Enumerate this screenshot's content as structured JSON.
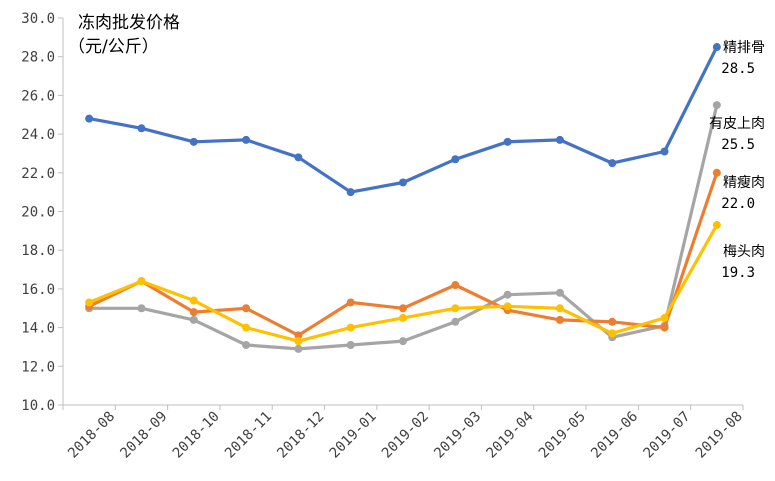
{
  "chart_data": {
    "type": "line",
    "title": "冻肉批发价格",
    "subtitle": "（元/公斤）",
    "xlabel": "",
    "ylabel": "",
    "categories": [
      "2018-08",
      "2018-09",
      "2018-10",
      "2018-11",
      "2018-12",
      "2019-01",
      "2019-02",
      "2019-03",
      "2019-04",
      "2019-05",
      "2019-06",
      "2019-07",
      "2019-08"
    ],
    "y_ticks": [
      "10.0",
      "12.0",
      "14.0",
      "16.0",
      "18.0",
      "20.0",
      "22.0",
      "24.0",
      "26.0",
      "28.0",
      "30.0"
    ],
    "ylim": [
      10,
      30
    ],
    "grid": false,
    "legend": "none",
    "series": [
      {
        "name": "精排骨",
        "color": "#4472C4",
        "values": [
          24.8,
          24.3,
          23.6,
          23.7,
          22.8,
          21.0,
          21.5,
          22.7,
          23.6,
          23.7,
          22.5,
          23.1,
          28.5
        ],
        "label_value": "28.5"
      },
      {
        "name": "有皮上肉",
        "color": "#A5A5A5",
        "values": [
          15.0,
          15.0,
          14.4,
          13.1,
          12.9,
          13.1,
          13.3,
          14.3,
          15.7,
          15.8,
          13.5,
          14.1,
          25.5
        ],
        "label_value": "25.5"
      },
      {
        "name": "精瘦肉",
        "color": "#ED7D31",
        "values": [
          15.1,
          16.4,
          14.8,
          15.0,
          13.6,
          15.3,
          15.0,
          16.2,
          14.9,
          14.4,
          14.3,
          14.0,
          22.0
        ],
        "label_value": "22.0"
      },
      {
        "name": "梅头肉",
        "color": "#FFC000",
        "values": [
          15.3,
          16.4,
          15.4,
          14.0,
          13.3,
          14.0,
          14.5,
          15.0,
          15.1,
          15.0,
          13.7,
          14.5,
          19.3
        ],
        "label_value": "19.3"
      }
    ]
  }
}
